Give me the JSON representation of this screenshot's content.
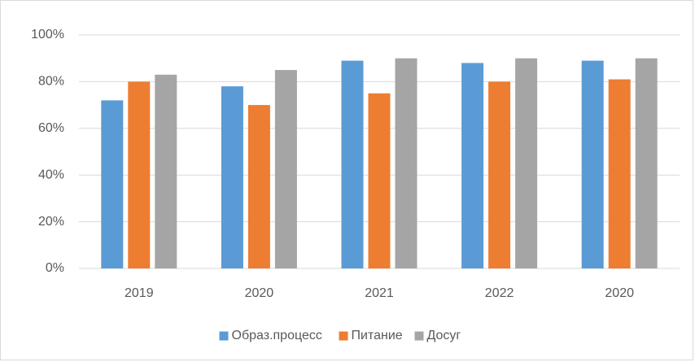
{
  "chart_data": {
    "type": "bar",
    "categories": [
      "2019",
      "2020",
      "2021",
      "2022",
      "2020"
    ],
    "series": [
      {
        "name": "Образ.процесс",
        "color": "#5b9bd5",
        "values": [
          72,
          78,
          89,
          88,
          89
        ]
      },
      {
        "name": "Питание",
        "color": "#ed7d31",
        "values": [
          80,
          70,
          75,
          80,
          81
        ]
      },
      {
        "name": "Досуг",
        "color": "#a5a5a5",
        "values": [
          83,
          85,
          90,
          90,
          90
        ]
      }
    ],
    "ylim": [
      0,
      100
    ],
    "yticks": [
      {
        "value": 0,
        "label": "0%"
      },
      {
        "value": 20,
        "label": "20%"
      },
      {
        "value": 40,
        "label": "40%"
      },
      {
        "value": 60,
        "label": "60%"
      },
      {
        "value": 80,
        "label": "80%"
      },
      {
        "value": 100,
        "label": "100%"
      }
    ],
    "grid": true,
    "legend": "bottom"
  }
}
